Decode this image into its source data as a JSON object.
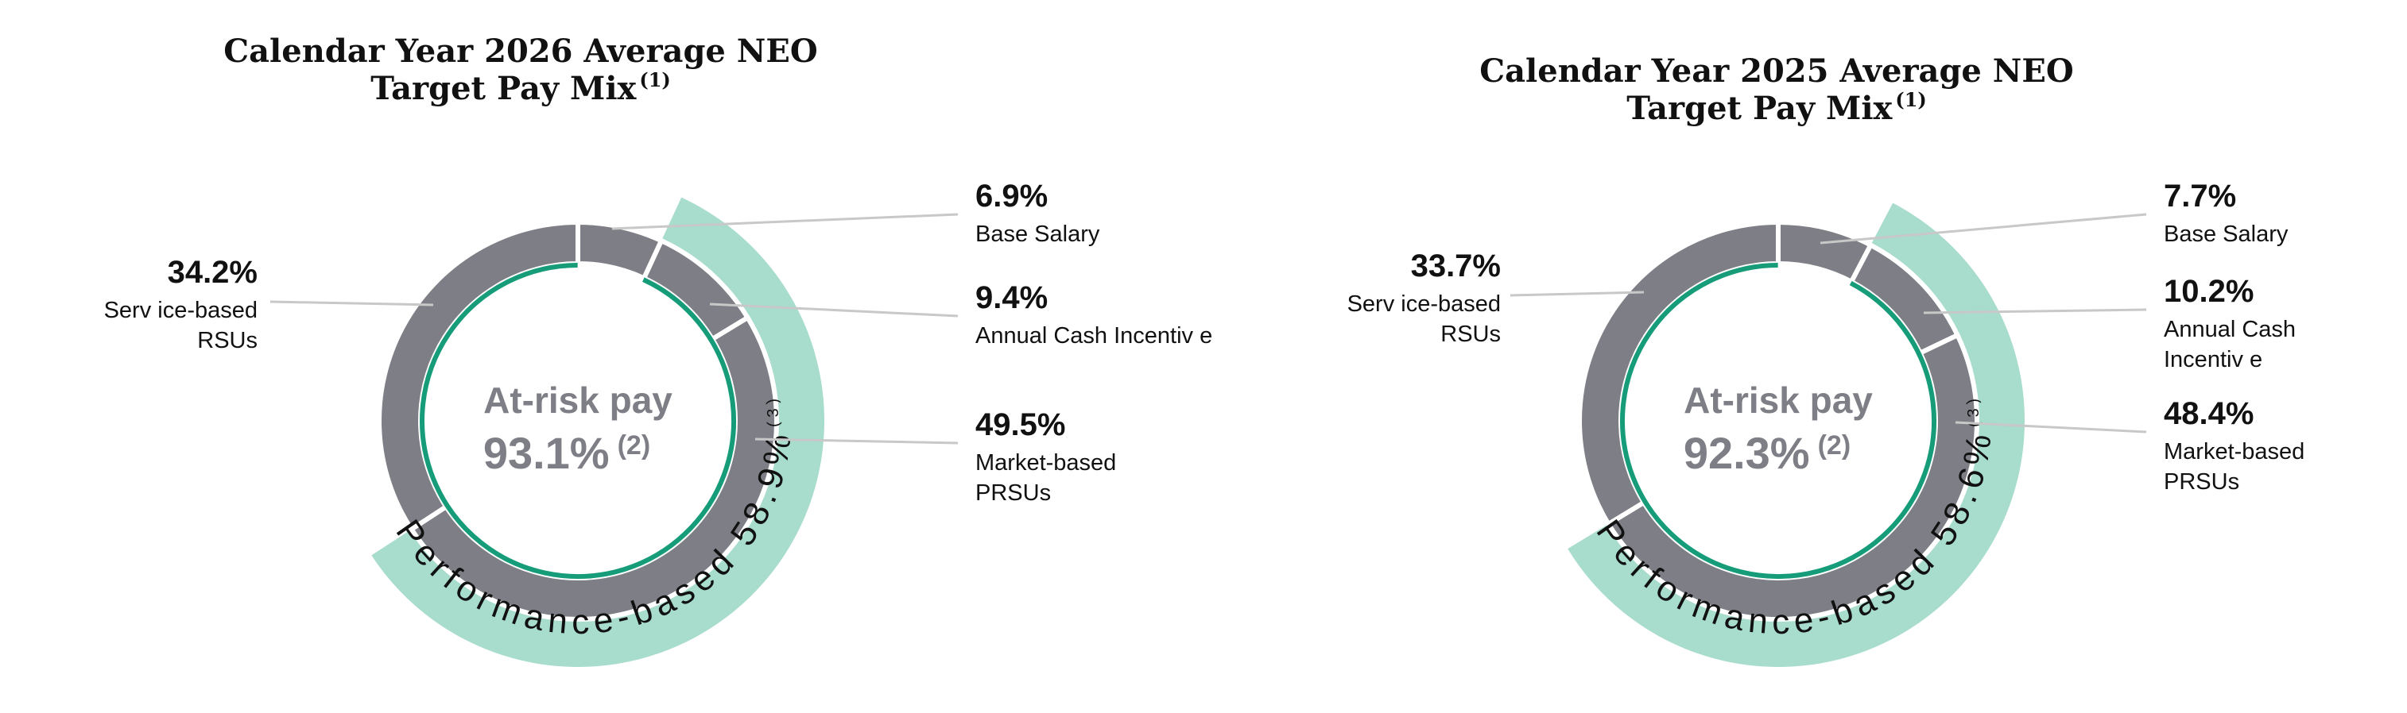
{
  "colors": {
    "segment": "#7e7f86",
    "performance_band": "#a8dccc",
    "at_risk_ring": "#169c78",
    "leader": "#c8c8c8",
    "text": "#111111",
    "center_text": "#7e7f86"
  },
  "chart_data": [
    {
      "type": "pie",
      "title_line1": "Calendar Year 2026 Average NEO",
      "title_line2": "Target Pay Mix",
      "title_sup": "(1)",
      "slices": [
        {
          "label_lines": [
            "Base Salary"
          ],
          "value": 6.9,
          "value_label": "6.9%"
        },
        {
          "label_lines": [
            "Annual Cash Incentiv e"
          ],
          "value": 9.4,
          "value_label": "9.4%"
        },
        {
          "label_lines": [
            "Market-based",
            "PRSUs"
          ],
          "value": 49.5,
          "value_label": "49.5%"
        },
        {
          "label_lines": [
            "Serv ice-based",
            "RSUs"
          ],
          "value": 34.2,
          "value_label": "34.2%"
        }
      ],
      "center_label": "At-risk pay",
      "center_value": "93.1%",
      "center_sup": "(2)",
      "at_risk_value": 93.1,
      "performance_label": "Performance-based 58.9%",
      "performance_sup": "(3)",
      "performance_value": 58.9
    },
    {
      "type": "pie",
      "title_line1": "Calendar Year 2025 Average NEO",
      "title_line2": "Target Pay Mix",
      "title_sup": "(1)",
      "slices": [
        {
          "label_lines": [
            "Base Salary"
          ],
          "value": 7.7,
          "value_label": "7.7%"
        },
        {
          "label_lines": [
            "Annual Cash",
            "Incentiv e"
          ],
          "value": 10.2,
          "value_label": "10.2%"
        },
        {
          "label_lines": [
            "Market-based",
            "PRSUs"
          ],
          "value": 48.4,
          "value_label": "48.4%"
        },
        {
          "label_lines": [
            "Serv ice-based",
            "RSUs"
          ],
          "value": 33.7,
          "value_label": "33.7%"
        }
      ],
      "center_label": "At-risk pay",
      "center_value": "92.3%",
      "center_sup": "(2)",
      "at_risk_value": 92.3,
      "performance_label": "Performance-based 58.6%",
      "performance_sup": "(3)",
      "performance_value": 58.6
    }
  ]
}
